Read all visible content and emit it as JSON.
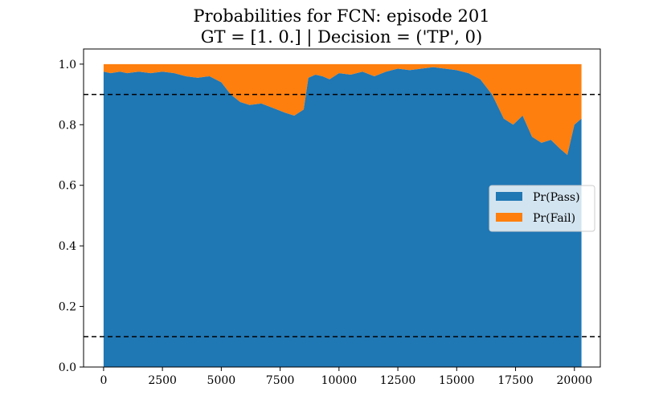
{
  "chart_data": {
    "type": "area",
    "stacked": true,
    "title_line1": "Probabilities for FCN: episode 201",
    "title_line2": "GT = [1. 0.] | Decision = ('TP', 0)",
    "xlim": [
      -850,
      21100
    ],
    "ylim": [
      0,
      1.05
    ],
    "x_ticks": [
      0,
      2500,
      5000,
      7500,
      10000,
      12500,
      15000,
      17500,
      20000
    ],
    "y_ticks": [
      0.0,
      0.2,
      0.4,
      0.6,
      0.8,
      1.0
    ],
    "thresholds": [
      0.9,
      0.1
    ],
    "legend_position": "center-right",
    "series": [
      {
        "name": "Pr(Pass)",
        "color": "#1f77b4",
        "x": [
          0,
          300,
          700,
          1000,
          1500,
          2000,
          2500,
          3000,
          3500,
          4000,
          4500,
          5000,
          5400,
          5800,
          6200,
          6700,
          7200,
          7700,
          8100,
          8500,
          8700,
          9000,
          9300,
          9600,
          10000,
          10500,
          11000,
          11500,
          12000,
          12500,
          13000,
          13500,
          14000,
          14500,
          15000,
          15500,
          16000,
          16500,
          17000,
          17400,
          17800,
          18200,
          18600,
          19000,
          19400,
          19700,
          20000,
          20300
        ],
        "values": [
          0.975,
          0.97,
          0.975,
          0.97,
          0.975,
          0.97,
          0.975,
          0.97,
          0.96,
          0.955,
          0.96,
          0.94,
          0.9,
          0.875,
          0.865,
          0.87,
          0.855,
          0.84,
          0.83,
          0.85,
          0.955,
          0.965,
          0.96,
          0.95,
          0.97,
          0.965,
          0.975,
          0.96,
          0.975,
          0.985,
          0.98,
          0.985,
          0.99,
          0.985,
          0.98,
          0.97,
          0.95,
          0.9,
          0.82,
          0.8,
          0.83,
          0.76,
          0.74,
          0.75,
          0.72,
          0.7,
          0.8,
          0.82
        ]
      },
      {
        "name": "Pr(Fail)",
        "color": "#ff7f0e",
        "values_complement_of": "Pr(Pass)"
      }
    ]
  }
}
